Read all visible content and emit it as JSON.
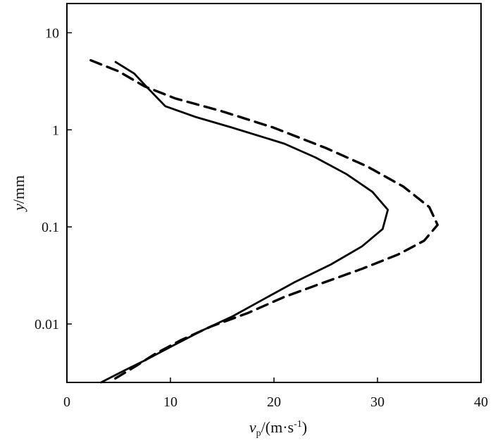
{
  "chart_data": {
    "type": "line",
    "title": "",
    "xlabel": {
      "base": "v",
      "sub": "p",
      "unit_open": "/(m·s",
      "unit_sup": "-1",
      "unit_close": ")"
    },
    "ylabel": {
      "var": "y",
      "unit": "/mm"
    },
    "xlim": [
      0,
      40
    ],
    "ylim": [
      0.0025,
      20
    ],
    "y_scale": "log",
    "grid": false,
    "legend": "none",
    "x_ticks": [
      {
        "value": 0,
        "label": "0"
      },
      {
        "value": 10,
        "label": "10"
      },
      {
        "value": 20,
        "label": "20"
      },
      {
        "value": 30,
        "label": "30"
      },
      {
        "value": 40,
        "label": "40"
      }
    ],
    "y_ticks": [
      {
        "value": 10,
        "label": "10"
      },
      {
        "value": 1,
        "label": "1"
      },
      {
        "value": 0.1,
        "label": "0.1"
      },
      {
        "value": 0.01,
        "label": "0.01"
      }
    ],
    "series": [
      {
        "style": "solid",
        "color": "#000000",
        "points": [
          [
            4.7,
            5.0
          ],
          [
            6.5,
            3.8
          ],
          [
            7.8,
            2.7
          ],
          [
            9.5,
            1.75
          ],
          [
            12.5,
            1.35
          ],
          [
            16.0,
            1.05
          ],
          [
            21.0,
            0.72
          ],
          [
            24.0,
            0.52
          ],
          [
            27.0,
            0.35
          ],
          [
            29.5,
            0.23
          ],
          [
            31.0,
            0.15
          ],
          [
            30.5,
            0.095
          ],
          [
            28.5,
            0.063
          ],
          [
            25.5,
            0.041
          ],
          [
            22.0,
            0.027
          ],
          [
            19.0,
            0.018
          ],
          [
            16.0,
            0.012
          ],
          [
            13.0,
            0.0085
          ],
          [
            10.0,
            0.0058
          ],
          [
            7.5,
            0.0042
          ],
          [
            5.5,
            0.0033
          ],
          [
            3.3,
            0.0025
          ]
        ]
      },
      {
        "style": "dashed",
        "color": "#000000",
        "points": [
          [
            2.3,
            5.2
          ],
          [
            5.0,
            4.0
          ],
          [
            7.5,
            2.8
          ],
          [
            10.5,
            2.1
          ],
          [
            15.0,
            1.55
          ],
          [
            20.0,
            1.05
          ],
          [
            25.0,
            0.65
          ],
          [
            29.0,
            0.42
          ],
          [
            32.5,
            0.26
          ],
          [
            35.0,
            0.16
          ],
          [
            35.8,
            0.105
          ],
          [
            34.5,
            0.072
          ],
          [
            32.0,
            0.052
          ],
          [
            28.5,
            0.037
          ],
          [
            24.5,
            0.026
          ],
          [
            21.0,
            0.019
          ],
          [
            17.5,
            0.013
          ],
          [
            14.0,
            0.0095
          ],
          [
            11.0,
            0.0068
          ],
          [
            8.5,
            0.0049
          ],
          [
            6.5,
            0.0036
          ],
          [
            4.3,
            0.0026
          ]
        ]
      }
    ]
  }
}
